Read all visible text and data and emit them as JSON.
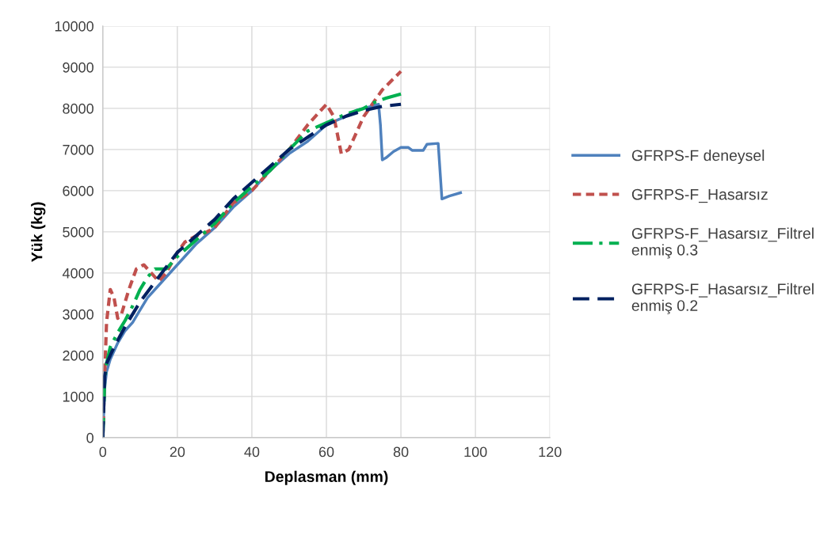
{
  "chart_data": {
    "type": "line",
    "xlabel": "Deplasman (mm)",
    "ylabel": "Yük (kg)",
    "xlim": [
      0,
      120
    ],
    "xticks": [
      0,
      20,
      40,
      60,
      80,
      100,
      120
    ],
    "ylim": [
      0,
      10000
    ],
    "yticks": [
      0,
      1000,
      2000,
      3000,
      4000,
      5000,
      6000,
      7000,
      8000,
      9000,
      10000
    ],
    "grid": true,
    "legend": "right",
    "marker": "none",
    "series": [
      {
        "name": "GFRPS-F deneysel",
        "color": "#4f81bd",
        "line_style": "solid",
        "x": [
          0,
          0.5,
          1,
          2,
          4,
          6,
          8,
          10,
          12,
          15,
          20,
          25,
          30,
          35,
          40,
          45,
          50,
          55,
          60,
          65,
          68,
          72,
          74,
          74.5,
          75,
          76,
          78,
          80,
          82,
          83,
          86,
          87,
          90,
          91,
          93,
          96
        ],
        "values": [
          0,
          1200,
          1600,
          1900,
          2300,
          2600,
          2800,
          3100,
          3400,
          3700,
          4200,
          4700,
          5100,
          5600,
          6000,
          6500,
          6900,
          7200,
          7600,
          7800,
          7950,
          8050,
          8100,
          7600,
          6750,
          6800,
          6950,
          7050,
          7050,
          6980,
          6980,
          7130,
          7150,
          5800,
          5870,
          5950
        ]
      },
      {
        "name": "GFRPS-F_Hasarsız",
        "color": "#c0504d",
        "line_style": "dotted",
        "x": [
          0,
          0.5,
          1,
          2,
          3,
          4,
          5,
          7,
          9,
          11,
          13,
          15,
          17,
          20,
          22,
          25,
          28,
          30,
          35,
          40,
          45,
          50,
          55,
          60,
          62,
          64,
          66,
          70,
          75,
          80
        ],
        "values": [
          0,
          1500,
          2800,
          3600,
          3400,
          2900,
          3000,
          3600,
          4100,
          4200,
          4000,
          3800,
          4000,
          4500,
          4750,
          4900,
          5000,
          5100,
          5700,
          6000,
          6500,
          7000,
          7600,
          8100,
          7800,
          6900,
          7000,
          7800,
          8450,
          8900
        ]
      },
      {
        "name": "GFRPS-F_Hasarsız_Filtrelenmiş 0.3",
        "color": "#00b050",
        "line_style": "dashdot",
        "x": [
          0,
          0.5,
          1,
          2,
          4,
          6,
          8,
          10,
          12,
          14,
          17,
          20,
          25,
          30,
          35,
          40,
          45,
          50,
          55,
          60,
          65,
          70,
          73,
          76,
          80
        ],
        "values": [
          0,
          1400,
          1800,
          2200,
          2550,
          2850,
          3200,
          3600,
          3900,
          4100,
          4100,
          4400,
          4800,
          5200,
          5700,
          6100,
          6500,
          7000,
          7450,
          7650,
          7850,
          8000,
          8150,
          8250,
          8350
        ]
      },
      {
        "name": "GFRPS-F_Hasarsız_Filtrelenmiş 0.2",
        "color": "#002060",
        "line_style": "dashed",
        "x": [
          0,
          0.5,
          1,
          3,
          6,
          10,
          15,
          20,
          25,
          30,
          35,
          40,
          45,
          50,
          55,
          60,
          65,
          70,
          75,
          80
        ],
        "values": [
          0,
          1500,
          1800,
          2200,
          2700,
          3300,
          3900,
          4500,
          4900,
          5300,
          5800,
          6200,
          6600,
          7000,
          7300,
          7600,
          7800,
          7950,
          8050,
          8100
        ]
      }
    ]
  }
}
